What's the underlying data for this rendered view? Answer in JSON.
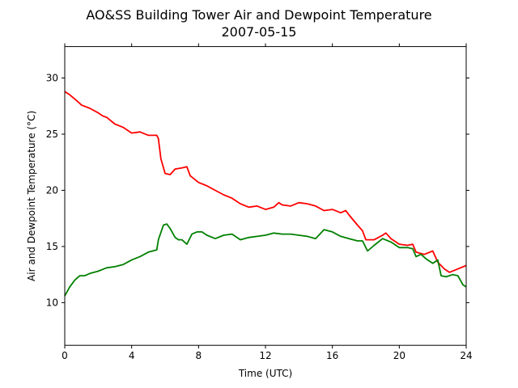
{
  "chart_data": {
    "type": "line",
    "title": "AO&SS Building Tower Air and Dewpoint Temperature",
    "subtitle": "2007-05-15",
    "xlabel": "Time (UTC)",
    "ylabel": "Air and Dewpoint Temperature (°C)",
    "xlim": [
      0,
      24
    ],
    "ylim": [
      6.2,
      32.8
    ],
    "xticks": [
      0,
      4,
      8,
      12,
      16,
      20,
      24
    ],
    "yticks": [
      10,
      15,
      20,
      25,
      30
    ],
    "grid": false,
    "legend": "none",
    "series": [
      {
        "color": "#ff0000",
        "x": [
          0,
          0.3,
          0.7,
          1,
          1.5,
          2,
          2.3,
          2.5,
          3,
          3.5,
          4,
          4.5,
          5,
          5.5,
          5.6,
          5.75,
          6,
          6.3,
          6.6,
          7,
          7.3,
          7.5,
          8,
          8.5,
          9,
          9.5,
          10,
          10.5,
          11,
          11.5,
          12,
          12.5,
          12.8,
          13,
          13.5,
          14,
          14.5,
          15,
          15.5,
          16,
          16.5,
          16.8,
          17,
          17.5,
          17.8,
          18,
          18.5,
          19,
          19.2,
          19.5,
          20,
          20.5,
          20.8,
          21,
          21.5,
          22,
          22.3,
          22.7,
          23,
          23.5,
          24
        ],
        "y": [
          28.8,
          28.5,
          28.0,
          27.6,
          27.3,
          26.9,
          26.6,
          26.5,
          25.9,
          25.6,
          25.1,
          25.2,
          24.9,
          24.9,
          24.6,
          22.8,
          21.5,
          21.4,
          21.9,
          22.0,
          22.1,
          21.3,
          20.7,
          20.4,
          20.0,
          19.6,
          19.3,
          18.8,
          18.5,
          18.6,
          18.3,
          18.5,
          18.9,
          18.7,
          18.6,
          18.9,
          18.8,
          18.6,
          18.2,
          18.3,
          18.0,
          18.2,
          17.8,
          16.9,
          16.4,
          15.6,
          15.6,
          16.0,
          16.2,
          15.7,
          15.2,
          15.1,
          15.2,
          14.5,
          14.3,
          14.6,
          13.6,
          13.0,
          12.7,
          13.0,
          13.3
        ]
      },
      {
        "color": "#008000",
        "x": [
          0,
          0.3,
          0.6,
          0.9,
          1.2,
          1.5,
          2,
          2.5,
          3,
          3.5,
          4,
          4.5,
          5,
          5.5,
          5.6,
          5.9,
          6.1,
          6.3,
          6.6,
          6.8,
          7,
          7.3,
          7.6,
          7.9,
          8.2,
          8.5,
          9,
          9.5,
          10,
          10.5,
          11,
          11.5,
          12,
          12.5,
          13,
          13.5,
          14,
          14.5,
          15,
          15.5,
          16,
          16.5,
          17,
          17.5,
          17.8,
          18.1,
          18.5,
          19,
          19.5,
          20,
          20.5,
          20.8,
          21,
          21.3,
          21.6,
          22,
          22.3,
          22.5,
          22.8,
          23.2,
          23.5,
          23.8,
          24
        ],
        "y": [
          10.6,
          11.4,
          12.0,
          12.4,
          12.4,
          12.6,
          12.8,
          13.1,
          13.2,
          13.4,
          13.8,
          14.1,
          14.5,
          14.7,
          15.6,
          16.9,
          17.0,
          16.6,
          15.8,
          15.6,
          15.6,
          15.2,
          16.1,
          16.3,
          16.3,
          16.0,
          15.7,
          16.0,
          16.1,
          15.6,
          15.8,
          15.9,
          16.0,
          16.2,
          16.1,
          16.1,
          16.0,
          15.9,
          15.7,
          16.5,
          16.3,
          15.9,
          15.7,
          15.5,
          15.5,
          14.6,
          15.1,
          15.7,
          15.4,
          14.9,
          14.9,
          14.8,
          14.1,
          14.3,
          13.9,
          13.5,
          13.8,
          12.4,
          12.3,
          12.5,
          12.4,
          11.6,
          11.4
        ]
      }
    ]
  }
}
